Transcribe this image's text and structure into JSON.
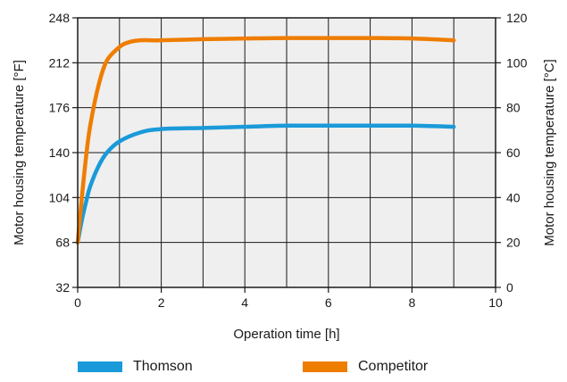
{
  "chart_data": {
    "type": "line",
    "xlabel": "Operation time [h]",
    "ylabel_left": "Motor housing temperature [°F]",
    "ylabel_right": "Motor housing temperature [°C]",
    "xlim": [
      0,
      10
    ],
    "ylim_left": [
      32,
      248
    ],
    "ylim_right": [
      0,
      120
    ],
    "xticks": [
      0,
      2,
      4,
      6,
      8,
      10
    ],
    "yticks_left": [
      32,
      68,
      104,
      140,
      176,
      212,
      248
    ],
    "yticks_right": [
      0,
      20,
      40,
      60,
      80,
      100,
      120
    ],
    "grid": true,
    "legend_position": "bottom",
    "series": [
      {
        "name": "Thomson",
        "color": "#1a9ad9",
        "unit": "°C",
        "x": [
          0,
          0.1,
          0.2,
          0.3,
          0.5,
          0.7,
          1.0,
          1.5,
          2.0,
          3.0,
          4.0,
          5.0,
          6.0,
          7.0,
          8.0,
          9.0
        ],
        "values": [
          20,
          30,
          38,
          45,
          54,
          60,
          65,
          69,
          70.5,
          71,
          71.5,
          72,
          72,
          72,
          72,
          71.5
        ]
      },
      {
        "name": "Competitor",
        "color": "#ef7d00",
        "unit": "°C",
        "x": [
          0,
          0.1,
          0.2,
          0.3,
          0.5,
          0.7,
          1.0,
          1.2,
          1.5,
          2.0,
          3.0,
          4.0,
          5.0,
          6.0,
          7.0,
          8.0,
          9.0
        ],
        "values": [
          20,
          40,
          58,
          72,
          90,
          101,
          107,
          109,
          110,
          110,
          110.5,
          110.8,
          111,
          111,
          111,
          110.8,
          110
        ]
      }
    ]
  }
}
